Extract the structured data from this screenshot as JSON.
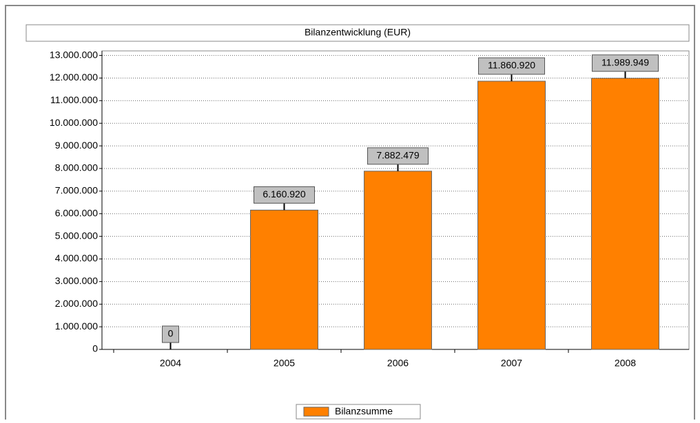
{
  "chart_data": {
    "type": "bar",
    "title": "Bilanzentwicklung (EUR)",
    "categories": [
      "2004",
      "2005",
      "2006",
      "2007",
      "2008"
    ],
    "series": [
      {
        "name": "Bilanzsumme",
        "color": "#ff8000",
        "values": [
          0,
          6160920,
          7882479,
          11860920,
          11989949
        ],
        "value_labels": [
          "0",
          "6.160.920",
          "7.882.479",
          "11.860.920",
          "11.989.949"
        ]
      }
    ],
    "ylim": [
      0,
      13200000
    ],
    "yticks": [
      0,
      {
        "value": 1000000,
        "label": "1.000.000"
      },
      {
        "value": 2000000,
        "label": "2.000.000"
      },
      {
        "value": 3000000,
        "label": "3.000.000"
      },
      {
        "value": 4000000,
        "label": "4.000.000"
      },
      {
        "value": 5000000,
        "label": "5.000.000"
      },
      {
        "value": 6000000,
        "label": "6.000.000"
      },
      {
        "value": 7000000,
        "label": "7.000.000"
      },
      {
        "value": 8000000,
        "label": "8.000.000"
      },
      {
        "value": 9000000,
        "label": "9.000.000"
      },
      {
        "value": 10000000,
        "label": "10.000.000"
      },
      {
        "value": 11000000,
        "label": "11.000.000"
      },
      {
        "value": 12000000,
        "label": "12.000.000"
      },
      {
        "value": 13000000,
        "label": "13.000.000"
      }
    ],
    "grid": true,
    "legend": "bottom"
  }
}
